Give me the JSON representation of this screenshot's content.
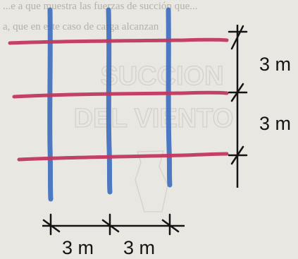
{
  "background_text": {
    "line1": "...e a que muestra las fuerzas de succión que...",
    "line2": "a, que en este caso de carga alcanzan"
  },
  "watermark": {
    "line1": "SUCCION",
    "line2": "DEL VIENTO"
  },
  "dimensions": {
    "right_upper": "3 m",
    "right_lower": "3 m",
    "bottom_left": "3 m",
    "bottom_right": "3 m"
  },
  "colors": {
    "paper": "#e9e7e1",
    "horizontal_lines": "#c2385f",
    "vertical_lines": "#3f6fbf",
    "ink": "#141414",
    "faint_text": "#b4b1aa",
    "watermark": "#d4d1ca"
  }
}
